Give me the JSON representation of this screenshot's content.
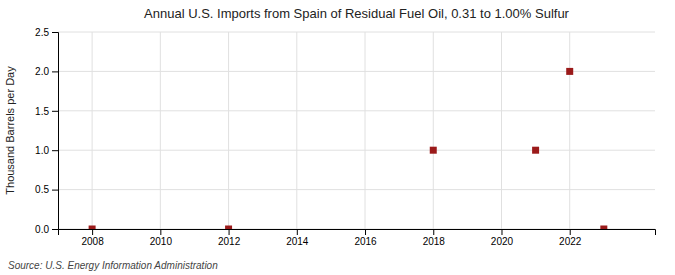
{
  "chart_data": {
    "type": "scatter",
    "title": "Annual U.S. Imports from Spain of Residual Fuel Oil, 0.31 to 1.00% Sulfur",
    "ylabel": "Thousand Barrels per Day",
    "annotations": [
      "Source: U.S. Energy Information Administration"
    ],
    "x": [
      2008,
      2012,
      2018,
      2021,
      2022,
      2023
    ],
    "values": [
      0.0,
      0.0,
      1.0,
      1.0,
      2.0,
      0.0
    ],
    "color": "#9b1a1a",
    "marker": "square",
    "xlim": [
      2007,
      2024.5
    ],
    "ylim": [
      0,
      2.5
    ],
    "xticks": [
      2008,
      2010,
      2012,
      2014,
      2016,
      2018,
      2020,
      2022
    ],
    "yticks": [
      {
        "value": 0.0,
        "label": "0.0"
      },
      0.5,
      {
        "value": 1.0,
        "label": "1.0"
      },
      1.5,
      {
        "value": 2.0,
        "label": "2.0"
      },
      2.5
    ],
    "grid": true
  }
}
